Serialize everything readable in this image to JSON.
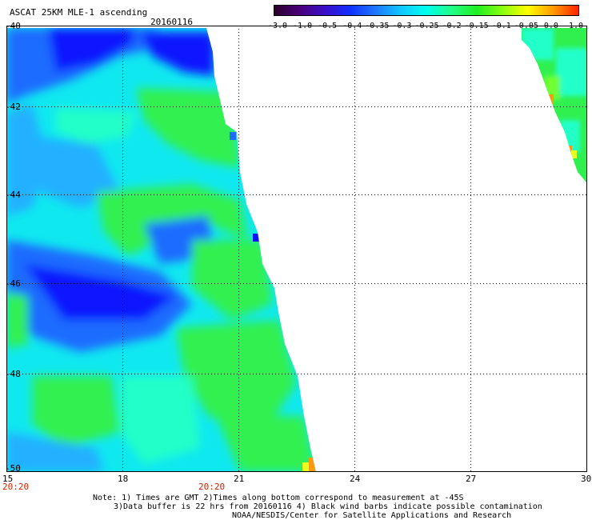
{
  "header": {
    "title": "ASCAT 25KM MLE-1 ascending",
    "date": "20160116"
  },
  "colorbar": {
    "labels": [
      "-3.0",
      "-1.0",
      "-0.5",
      "-0.4",
      "-0.35",
      "-0.3",
      "-0.25",
      "-0.2",
      "-0.15",
      "-0.1",
      "-0.05",
      "0.0",
      "1.0"
    ],
    "colors": [
      "#2a002a",
      "#4a007a",
      "#3a10c8",
      "#1030ff",
      "#1e78ff",
      "#10c8ff",
      "#00ffee",
      "#20ff88",
      "#20ee20",
      "#88ff10",
      "#ffff00",
      "#ff9900",
      "#ff2200"
    ]
  },
  "axes": {
    "lat_labels": [
      "-40",
      "-42",
      "-44",
      "-46",
      "-48",
      "-50"
    ],
    "lon_labels": [
      "15",
      "18",
      "21",
      "24",
      "27",
      "30"
    ],
    "time_labels": [
      "20:20",
      "20:20"
    ]
  },
  "notes": {
    "line1": "Note: 1) Times are GMT 2)Times along bottom correspond to measurement at -45S",
    "line2": "3)Data buffer is 22 hrs from 20160116 4) Black wind barbs indicate possible contamination",
    "line3": "NOAA/NESDIS/Center for Satellite Applications and Research"
  },
  "palette": {
    "deep_blue": "#0a14ff",
    "blue": "#1c6cff",
    "light_blue": "#22b0ff",
    "cyan": "#10e8f0",
    "aqua": "#20ffc8",
    "green": "#30f050",
    "lime": "#70ff30",
    "yellow": "#e8ff20",
    "orange": "#ff9a10"
  }
}
